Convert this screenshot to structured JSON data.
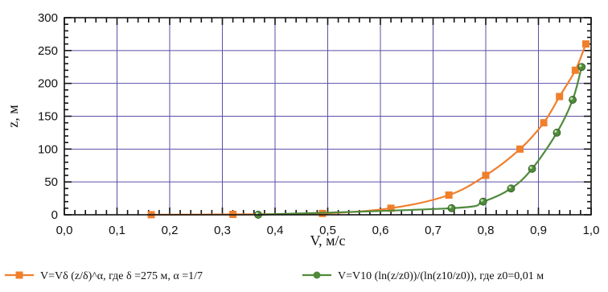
{
  "chart_data": {
    "type": "line",
    "title": "",
    "xlabel": "V, м/с",
    "ylabel": "z, м",
    "xlim": [
      0.0,
      1.0
    ],
    "ylim": [
      0,
      300
    ],
    "x_ticks": [
      "0,0",
      "0,1",
      "0,2",
      "0,3",
      "0,4",
      "0,5",
      "0,6",
      "0,7",
      "0,8",
      "0,9",
      "1,0"
    ],
    "y_ticks": [
      "0",
      "50",
      "100",
      "150",
      "200",
      "250",
      "300"
    ],
    "grid": true,
    "legend_position": "bottom",
    "series": [
      {
        "name": "V=Vδ (z/δ)^α, где δ =275 м, α =1/7",
        "color": "#f07f2c",
        "marker": "square",
        "x": [
          0.165,
          0.32,
          0.49,
          0.62,
          0.73,
          0.8,
          0.865,
          0.91,
          0.94,
          0.97,
          0.99
        ],
        "y": [
          0.1,
          0.6,
          2,
          10,
          30,
          60,
          100,
          140,
          180,
          220,
          260
        ]
      },
      {
        "name": "V=V10 (ln(z/z0))/(ln(z10/z0)), где z0=0,01 м",
        "color": "#4f8a3b",
        "marker": "circle",
        "x": [
          0.368,
          0.735,
          0.795,
          0.848,
          0.888,
          0.935,
          0.965,
          0.982
        ],
        "y": [
          0.1,
          10,
          20,
          40,
          70,
          125,
          175,
          225
        ]
      }
    ]
  }
}
